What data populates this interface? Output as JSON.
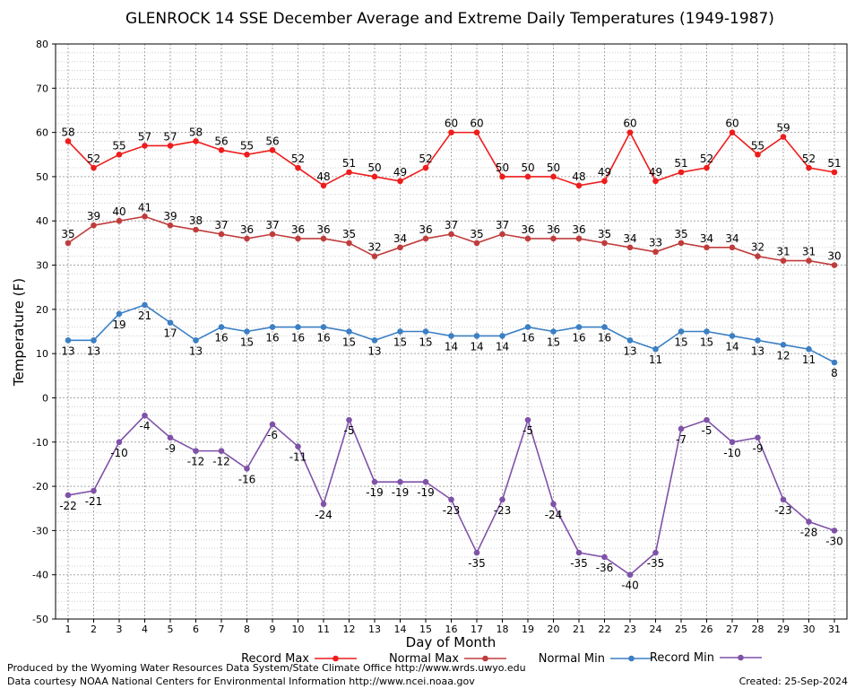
{
  "chart_data": {
    "type": "line",
    "title": "GLENROCK 14 SSE December Average and Extreme Daily Temperatures (1949-1987)",
    "xlabel": "Day of Month",
    "ylabel": "Temperature (F)",
    "ylim": [
      -50,
      80
    ],
    "xlim": [
      1,
      31
    ],
    "x": [
      1,
      2,
      3,
      4,
      5,
      6,
      7,
      8,
      9,
      10,
      11,
      12,
      13,
      14,
      15,
      16,
      17,
      18,
      19,
      20,
      21,
      22,
      23,
      24,
      25,
      26,
      27,
      28,
      29,
      30,
      31
    ],
    "yticks": [
      "80",
      "70",
      "60",
      "50",
      "40",
      "30",
      "20",
      "10",
      "0",
      "-10",
      "-20",
      "-30",
      "-40",
      "-50"
    ],
    "xticks": [
      "1",
      "2",
      "3",
      "4",
      "5",
      "6",
      "7",
      "8",
      "9",
      "10",
      "11",
      "12",
      "13",
      "14",
      "15",
      "16",
      "17",
      "18",
      "19",
      "20",
      "21",
      "22",
      "23",
      "24",
      "25",
      "26",
      "27",
      "28",
      "29",
      "30",
      "31"
    ],
    "grid": true,
    "legend_position": "bottom",
    "series": [
      {
        "name": "Record Max",
        "color": "#ee1c1c",
        "label_pos": "above",
        "values": [
          58,
          52,
          55,
          57,
          57,
          58,
          56,
          55,
          56,
          52,
          48,
          51,
          50,
          49,
          52,
          60,
          60,
          50,
          50,
          50,
          48,
          49,
          60,
          49,
          51,
          52,
          60,
          55,
          59,
          52,
          51
        ]
      },
      {
        "name": "Normal Max",
        "color": "#c03c3c",
        "label_pos": "above",
        "values": [
          35,
          39,
          40,
          41,
          39,
          38,
          37,
          36,
          37,
          36,
          36,
          35,
          32,
          34,
          36,
          37,
          35,
          37,
          36,
          36,
          36,
          35,
          34,
          33,
          35,
          34,
          34,
          32,
          31,
          31,
          30
        ]
      },
      {
        "name": "Normal Min",
        "color": "#3b7fc4",
        "label_pos": "below",
        "values": [
          13,
          13,
          19,
          21,
          17,
          13,
          16,
          15,
          16,
          16,
          16,
          15,
          13,
          15,
          15,
          14,
          14,
          14,
          16,
          15,
          16,
          16,
          13,
          11,
          15,
          15,
          14,
          13,
          12,
          11,
          8
        ]
      },
      {
        "name": "Record Min",
        "color": "#7f52a8",
        "label_pos": "below",
        "values": [
          -22,
          -21,
          -10,
          -4,
          -9,
          -12,
          -12,
          -16,
          -6,
          -11,
          -24,
          -5,
          -19,
          -19,
          -19,
          -23,
          -35,
          -23,
          -5,
          -24,
          -35,
          -36,
          -40,
          -35,
          -7,
          -5,
          -10,
          -9,
          -23,
          -28,
          -30
        ]
      }
    ]
  },
  "footer": {
    "line1": "Produced by the Wyoming Water Resources Data System/State Climate Office http://www.wrds.uwyo.edu",
    "line2": "Data courtesy NOAA National Centers for Environmental Information http://www.ncei.noaa.gov",
    "created": "Created:  25-Sep-2024"
  }
}
